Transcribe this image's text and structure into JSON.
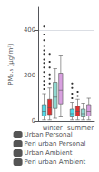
{
  "chart_data": {
    "type": "boxplot",
    "ylabel": "PM₂.₅ (μg/m³)",
    "categories": [
      "winter",
      "summer"
    ],
    "series": [
      {
        "name": "Urban Personal",
        "color": "#4dd9e8",
        "values": [
          {
            "whislo": 5,
            "q1": 22,
            "median": 42,
            "q3": 72,
            "whishi": 120,
            "fliers": [
              140,
              160,
              175,
              195,
              215,
              235,
              255,
              270,
              295,
              310,
              330,
              355,
              380,
              415
            ]
          },
          {
            "whislo": 5,
            "q1": 18,
            "median": 32,
            "q3": 52,
            "whishi": 82,
            "fliers": [
              100,
              120,
              145,
              165
            ]
          }
        ]
      },
      {
        "name": "Peri urban Personal",
        "color": "#e03030",
        "values": [
          {
            "whislo": 5,
            "q1": 28,
            "median": 58,
            "q3": 95,
            "whishi": 145,
            "fliers": [
              165,
              185,
              205,
              235,
              260,
              295
            ]
          },
          {
            "whislo": 5,
            "q1": 22,
            "median": 42,
            "q3": 65,
            "whishi": 95,
            "fliers": [
              110,
              128
            ]
          }
        ]
      },
      {
        "name": "Urban Ambient",
        "color": "#90d8d0",
        "values": [
          {
            "whislo": 12,
            "q1": 55,
            "median": 105,
            "q3": 170,
            "whishi": 230,
            "fliers": []
          },
          {
            "whislo": 5,
            "q1": 18,
            "median": 32,
            "q3": 52,
            "whishi": 78,
            "fliers": []
          }
        ]
      },
      {
        "name": "Peri urban Ambient",
        "color": "#d8a0e0",
        "values": [
          {
            "whislo": 18,
            "q1": 75,
            "median": 135,
            "q3": 210,
            "whishi": 290,
            "fliers": []
          },
          {
            "whislo": 5,
            "q1": 22,
            "median": 42,
            "q3": 72,
            "whishi": 100,
            "fliers": []
          }
        ]
      }
    ],
    "ylim": [
      0,
      500
    ],
    "yticks": [
      0,
      200,
      400
    ],
    "grid": true,
    "legend": "bottom"
  }
}
